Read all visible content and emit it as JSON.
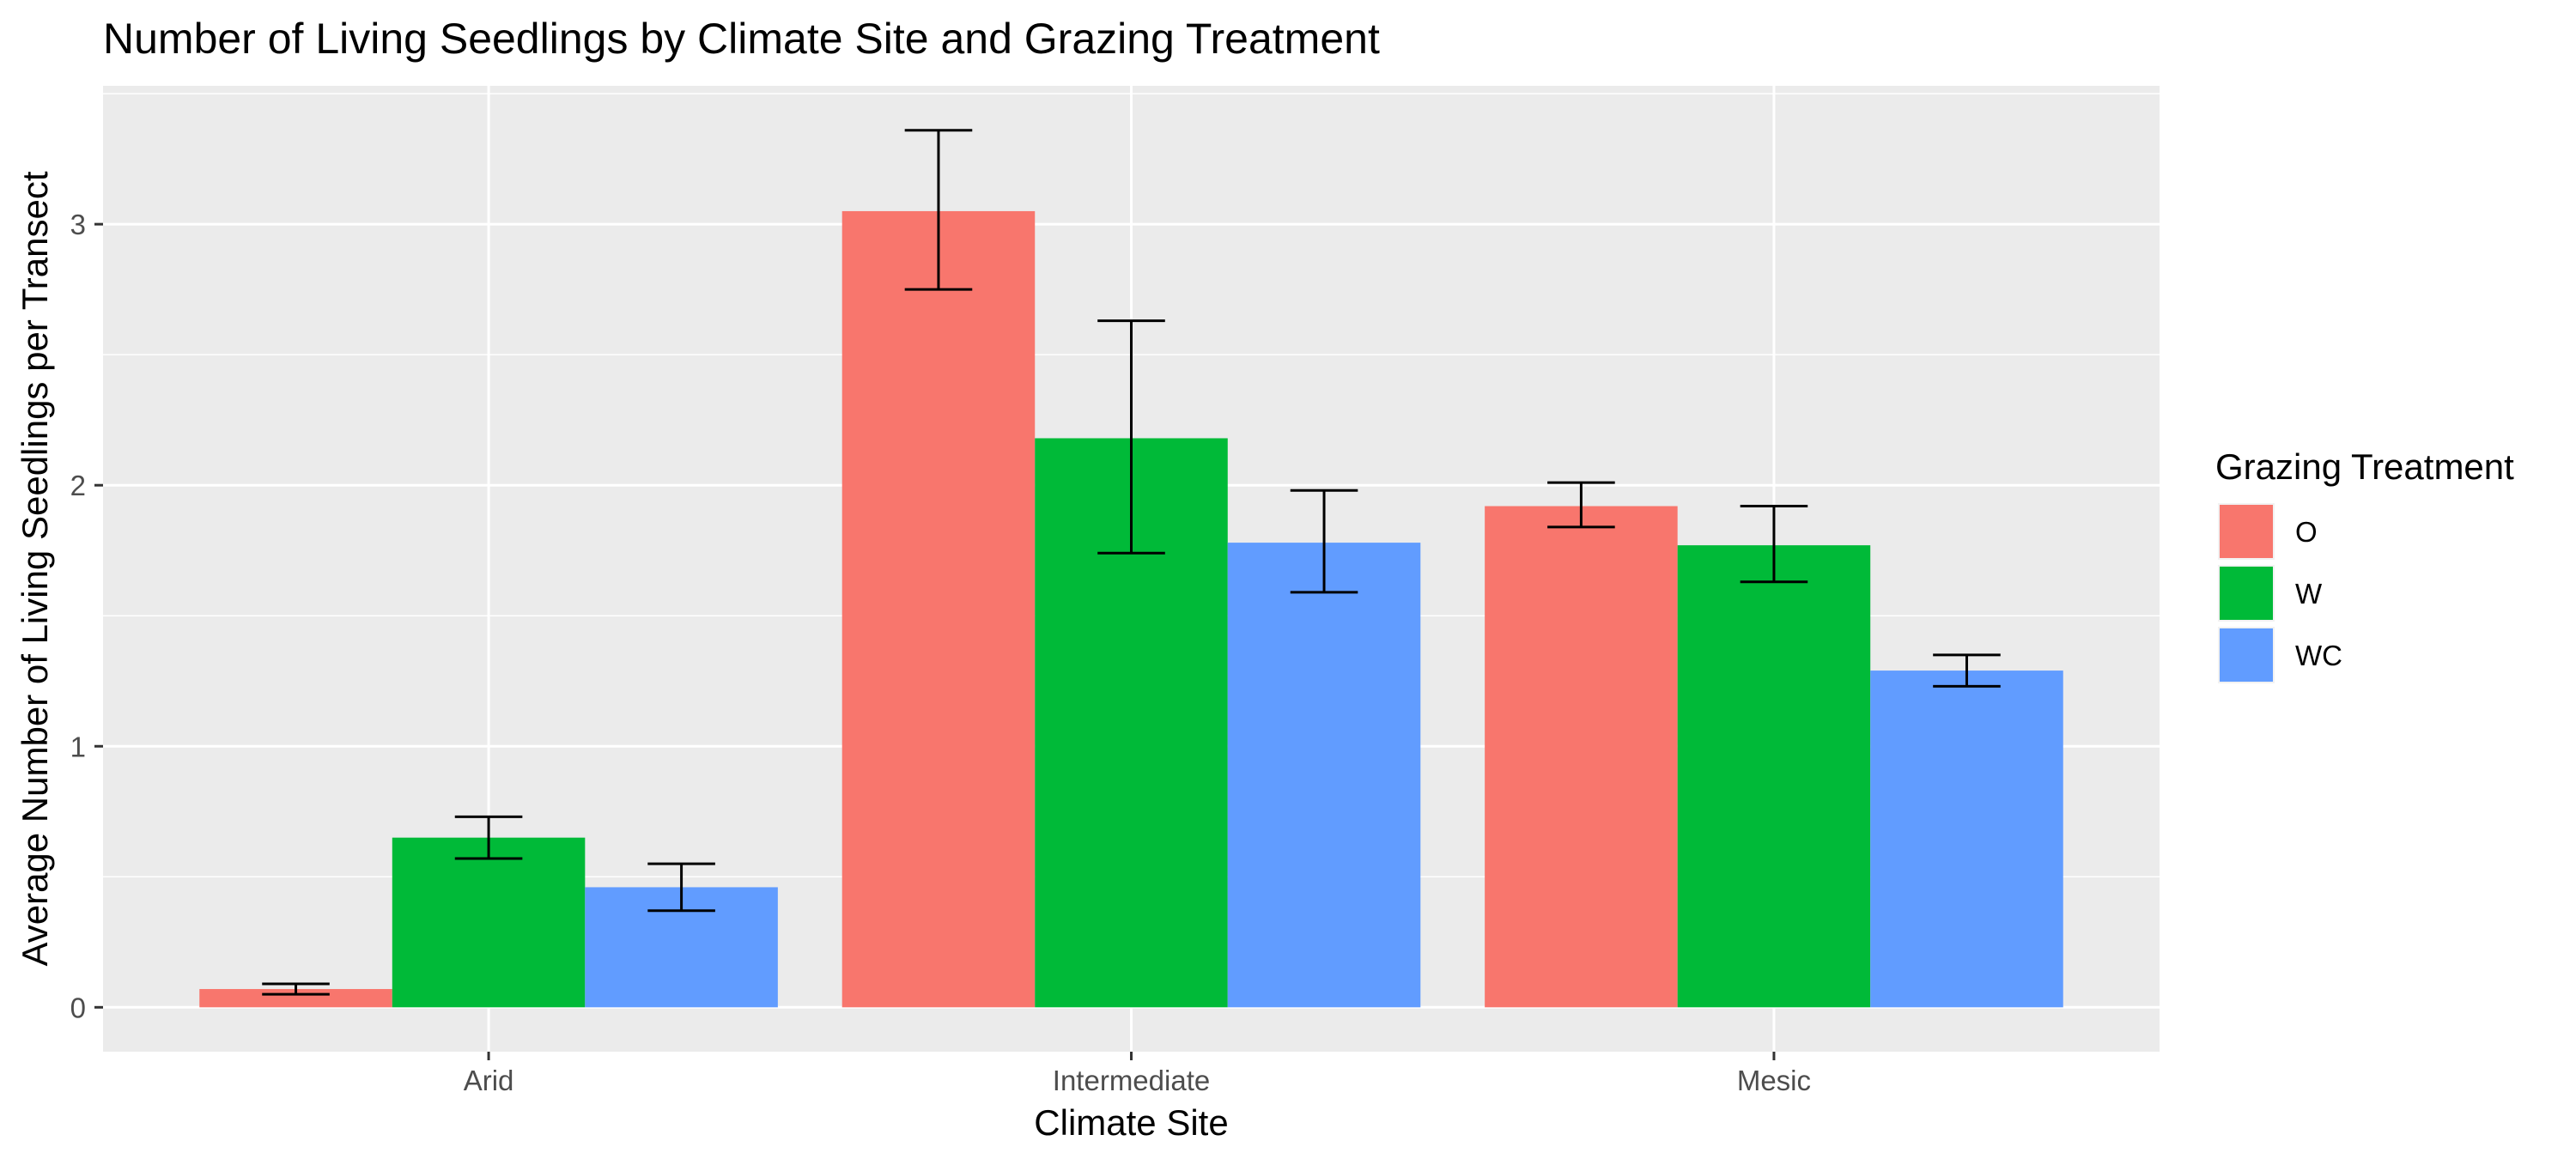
{
  "chart_data": {
    "type": "bar",
    "title": "Number of Living Seedlings by Climate Site and Grazing Treatment",
    "xlabel": "Climate Site",
    "ylabel": "Average Number of Living Seedlings per Transect",
    "categories": [
      "Arid",
      "Intermediate",
      "Mesic"
    ],
    "series": [
      {
        "name": "O",
        "color": "#F8766D",
        "values": [
          0.07,
          3.05,
          1.92
        ],
        "error_low": [
          0.05,
          2.75,
          1.84
        ],
        "error_high": [
          0.09,
          3.36,
          2.01
        ]
      },
      {
        "name": "W",
        "color": "#00BA38",
        "values": [
          0.65,
          2.18,
          1.77
        ],
        "error_low": [
          0.57,
          1.74,
          1.63
        ],
        "error_high": [
          0.73,
          2.63,
          1.92
        ]
      },
      {
        "name": "WC",
        "color": "#619CFF",
        "values": [
          0.46,
          1.78,
          1.29
        ],
        "error_low": [
          0.37,
          1.59,
          1.23
        ],
        "error_high": [
          0.55,
          1.98,
          1.35
        ]
      }
    ],
    "yticks": [
      0,
      1,
      2,
      3
    ],
    "ylim": [
      -0.17,
      3.53
    ],
    "grid": true,
    "legend": {
      "title": "Grazing Treatment",
      "position": "right"
    },
    "panel_background": "#EBEBEB",
    "gridline_color": "#FFFFFF"
  }
}
